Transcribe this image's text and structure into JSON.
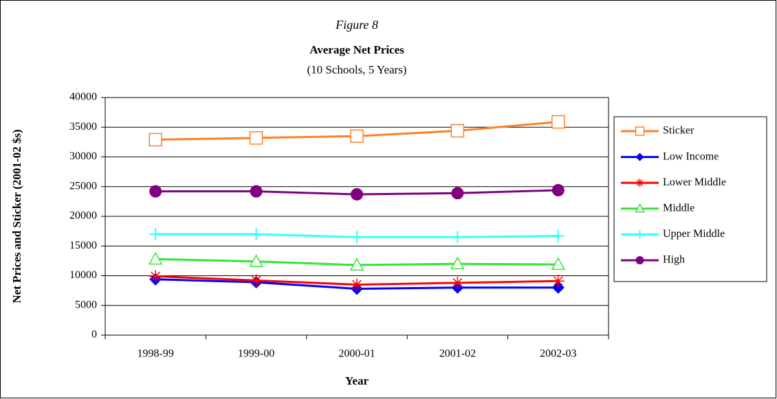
{
  "chart_data": {
    "type": "line",
    "title": "Figure 8",
    "subtitle": "Average Net Prices",
    "subtitle2": "(10 Schools, 5 Years)",
    "x_label": "Year",
    "y_label": "Net Prices and Sticker (2001-02 $s)",
    "categories": [
      "1998-99",
      "1999-00",
      "2000-01",
      "2001-02",
      "2002-03"
    ],
    "series": [
      {
        "name": "Sticker",
        "color": "#ff7f27",
        "marker": "square",
        "values": [
          32900,
          33200,
          33500,
          34400,
          35900
        ]
      },
      {
        "name": "Low Income",
        "color": "#0000ff",
        "marker": "diamond",
        "values": [
          9400,
          8900,
          7800,
          8000,
          8000
        ]
      },
      {
        "name": "Lower Middle",
        "color": "#ff0000",
        "marker": "asterisk",
        "values": [
          9900,
          9200,
          8500,
          8800,
          9100
        ]
      },
      {
        "name": "Middle",
        "color": "#33e633",
        "marker": "triangle",
        "values": [
          12800,
          12400,
          11800,
          12000,
          11900
        ]
      },
      {
        "name": "Upper Middle",
        "color": "#33ffff",
        "marker": "plus",
        "values": [
          17000,
          17000,
          16500,
          16500,
          16700
        ]
      },
      {
        "name": "High",
        "color": "#800080",
        "marker": "circle",
        "values": [
          24200,
          24200,
          23700,
          23900,
          24400
        ]
      }
    ],
    "ylim": [
      0,
      40000
    ],
    "yticks": [
      0,
      5000,
      10000,
      15000,
      20000,
      25000,
      30000,
      35000,
      40000
    ],
    "grid": true,
    "legend": "right"
  }
}
